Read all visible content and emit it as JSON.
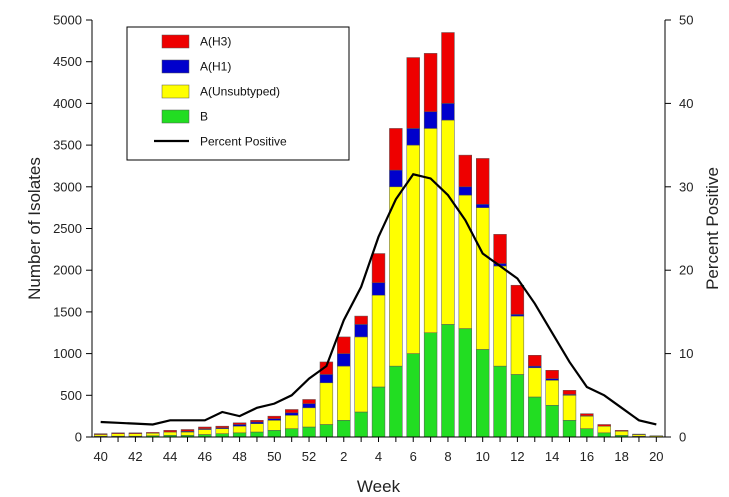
{
  "chart_data": {
    "type": "bar",
    "stacked": true,
    "xlabel": "Week",
    "ylabel": "Number of Isolates",
    "y2label": "Percent Positive",
    "ylim": [
      0,
      5000
    ],
    "y2lim": [
      0,
      50
    ],
    "yticks": [
      "0",
      "500",
      "1000",
      "1500",
      "2000",
      "2500",
      "3000",
      "3500",
      "4000",
      "4500",
      "5000"
    ],
    "y2ticks": [
      "0",
      "10",
      "20",
      "30",
      "40",
      "50"
    ],
    "categories": [
      "40",
      "41",
      "42",
      "43",
      "44",
      "45",
      "46",
      "47",
      "48",
      "49",
      "50",
      "51",
      "52",
      "1",
      "2",
      "3",
      "4",
      "5",
      "6",
      "7",
      "8",
      "9",
      "10",
      "11",
      "12",
      "13",
      "14",
      "15",
      "16",
      "17",
      "18",
      "19",
      "20"
    ],
    "xtick_labels": [
      "40",
      "42",
      "44",
      "46",
      "48",
      "50",
      "52",
      "2",
      "4",
      "6",
      "8",
      "10",
      "12",
      "14",
      "16",
      "18",
      "20"
    ],
    "series": [
      {
        "name": "B",
        "color": "#22dd22",
        "values": [
          10,
          10,
          10,
          15,
          20,
          20,
          30,
          40,
          50,
          60,
          80,
          100,
          120,
          150,
          200,
          300,
          600,
          850,
          1000,
          1250,
          1350,
          1300,
          1050,
          850,
          750,
          480,
          380,
          200,
          100,
          50,
          20,
          10,
          5
        ]
      },
      {
        "name": "A(Unsubtyped)",
        "color": "#ffff00",
        "values": [
          20,
          30,
          30,
          30,
          40,
          40,
          60,
          60,
          80,
          100,
          120,
          160,
          230,
          500,
          650,
          900,
          1100,
          2150,
          2500,
          2450,
          2450,
          1600,
          1700,
          1200,
          700,
          350,
          300,
          300,
          150,
          80,
          50,
          20,
          10
        ]
      },
      {
        "name": "A(H1)",
        "color": "#0000cc",
        "values": [
          0,
          0,
          0,
          0,
          0,
          10,
          10,
          10,
          20,
          20,
          20,
          30,
          50,
          100,
          150,
          150,
          150,
          200,
          200,
          200,
          200,
          100,
          40,
          30,
          20,
          20,
          20,
          10,
          5,
          0,
          0,
          0,
          0
        ]
      },
      {
        "name": "A(H3)",
        "color": "#ee0000",
        "values": [
          10,
          10,
          10,
          10,
          20,
          20,
          20,
          20,
          20,
          20,
          30,
          40,
          50,
          150,
          200,
          100,
          350,
          500,
          850,
          700,
          850,
          380,
          550,
          350,
          350,
          130,
          100,
          50,
          25,
          20,
          10,
          5,
          0
        ]
      }
    ],
    "line": {
      "name": "Percent Positive",
      "color": "#000000",
      "values": [
        1.8,
        1.7,
        1.6,
        1.5,
        2,
        2,
        2,
        3,
        2.5,
        3.5,
        4,
        5,
        7,
        8.5,
        14,
        18,
        24,
        28.5,
        31.5,
        31,
        29,
        26,
        22,
        20.5,
        19,
        16,
        12.5,
        9,
        6,
        5,
        3.5,
        2,
        1.5
      ]
    },
    "legend": [
      "A(H3)",
      "A(H1)",
      "A(Unsubtyped)",
      "B",
      "Percent Positive"
    ],
    "legend_position": "top-left",
    "grid": false
  }
}
